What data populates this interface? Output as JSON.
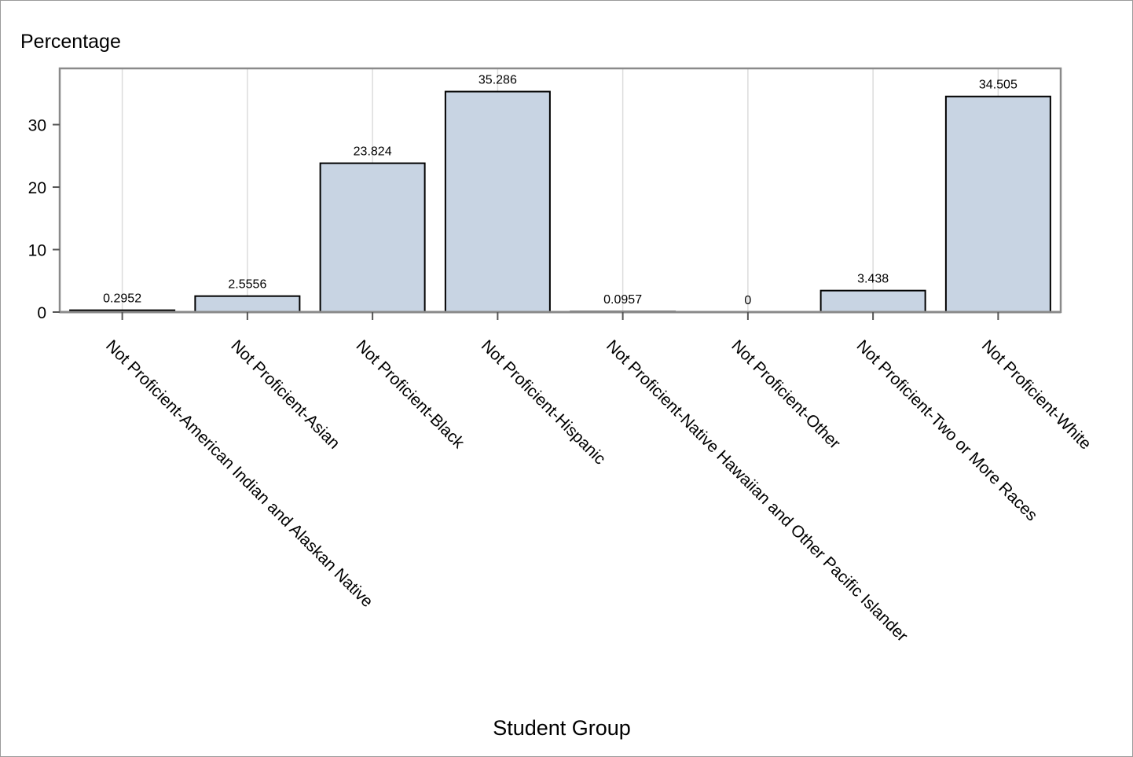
{
  "chart_data": {
    "type": "bar",
    "ylabel": "Percentage",
    "xlabel": "Student Group",
    "categories": [
      "Not Proficient-American Indian and Alaskan Native",
      "Not Proficient-Asian",
      "Not Proficient-Black",
      "Not Proficient-Hispanic",
      "Not Proficient-Native Hawaiian and Other Pacific Islander",
      "Not Proficient-Other",
      "Not Proficient-Two or More Races",
      "Not Proficient-White"
    ],
    "values": [
      0.2952,
      2.5556,
      23.824,
      35.286,
      0.0957,
      0,
      3.438,
      34.505
    ],
    "value_labels": [
      "0.2952",
      "2.5556",
      "23.824",
      "35.286",
      "0.0957",
      "0",
      "3.438",
      "34.505"
    ],
    "yticks": [
      0,
      10,
      20,
      30
    ],
    "ytick_labels": [
      "0",
      "10",
      "20",
      "30"
    ],
    "ylim": [
      0,
      39
    ],
    "grid": "vertical",
    "colors": {
      "bar_fill": "#c8d4e3",
      "bar_stroke": "#000000",
      "gridline": "#dcdcdc",
      "axis_frame": "#8a8a8a"
    }
  }
}
